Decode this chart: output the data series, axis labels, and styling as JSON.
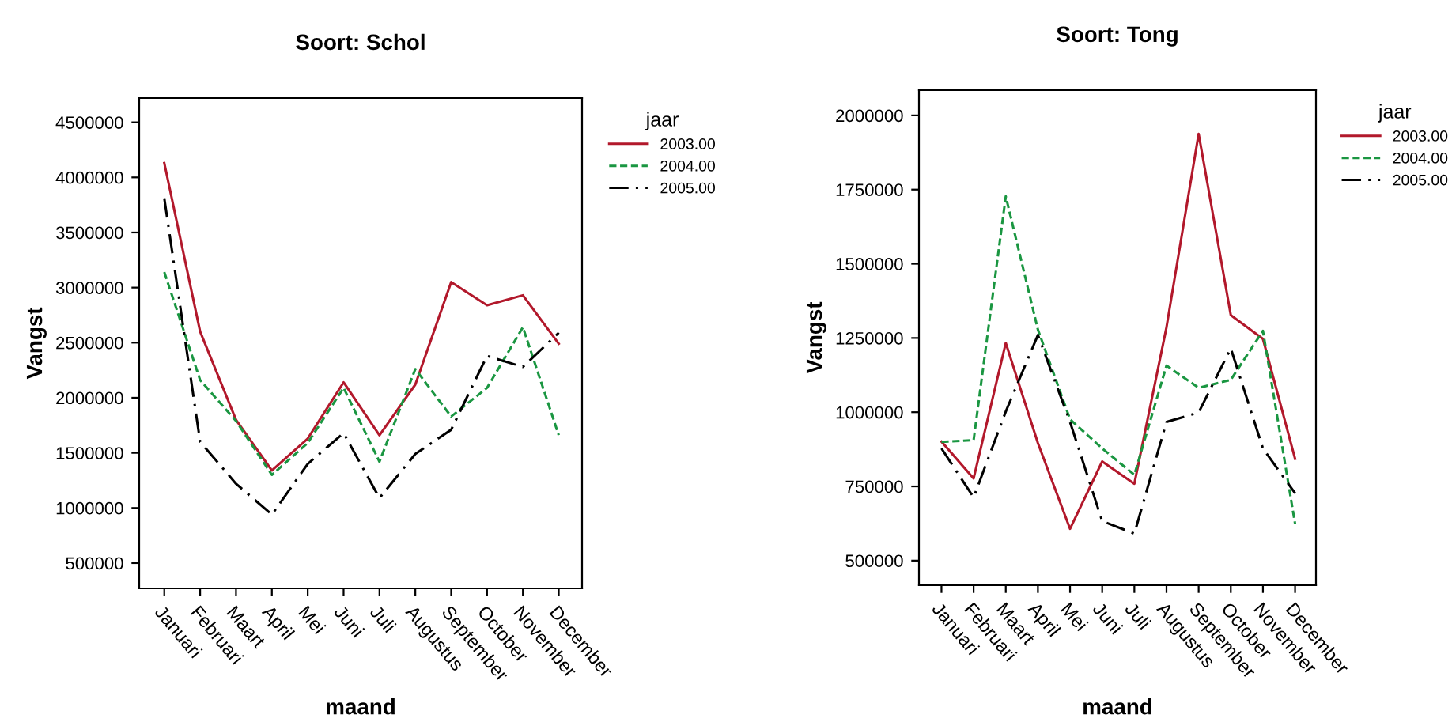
{
  "chart_data": [
    {
      "type": "line",
      "title": "Soort: Schol",
      "xlabel": "maand",
      "ylabel": "Vangst",
      "legend_title": "jaar",
      "legend": "right",
      "grid": false,
      "categories": [
        "Januari",
        "Februari",
        "Maart",
        "April",
        "Mei",
        "Juni",
        "Juli",
        "Augustus",
        "September",
        "October",
        "November",
        "December"
      ],
      "ylim": [
        270000,
        4720000
      ],
      "yticks": [
        500000,
        1000000,
        1500000,
        2000000,
        2500000,
        3000000,
        3500000,
        4000000,
        4500000
      ],
      "series": [
        {
          "name": "2003.00",
          "color": "#b2182b",
          "line_style": "solid",
          "values": [
            4130000,
            2600000,
            1800000,
            1340000,
            1630000,
            2140000,
            1660000,
            2120000,
            3050000,
            2840000,
            2930000,
            2490000
          ]
        },
        {
          "name": "2004.00",
          "color": "#1a9641",
          "line_style": "dashed",
          "values": [
            3140000,
            2160000,
            1790000,
            1300000,
            1590000,
            2090000,
            1420000,
            2260000,
            1830000,
            2090000,
            2640000,
            1660000
          ]
        },
        {
          "name": "2005.00",
          "color": "#000000",
          "line_style": "dashdot",
          "values": [
            3810000,
            1600000,
            1220000,
            940000,
            1400000,
            1680000,
            1090000,
            1490000,
            1710000,
            2380000,
            2280000,
            2590000
          ]
        }
      ]
    },
    {
      "type": "line",
      "title": "Soort: Tong",
      "xlabel": "maand",
      "ylabel": "Vangst",
      "legend_title": "jaar",
      "legend": "right",
      "grid": false,
      "categories": [
        "Januari",
        "Februari",
        "Maart",
        "April",
        "Mei",
        "Juni",
        "Juli",
        "Augustus",
        "September",
        "October",
        "November",
        "December"
      ],
      "ylim": [
        417000,
        2085000
      ],
      "yticks": [
        500000,
        750000,
        1000000,
        1250000,
        1500000,
        1750000,
        2000000
      ],
      "series": [
        {
          "name": "2003.00",
          "color": "#b2182b",
          "line_style": "solid",
          "values": [
            901000,
            777000,
            1233000,
            896000,
            607000,
            834000,
            759000,
            1286000,
            1938000,
            1327000,
            1247000,
            843000
          ]
        },
        {
          "name": "2004.00",
          "color": "#1a9641",
          "line_style": "dashed",
          "values": [
            900000,
            906000,
            1727000,
            1278000,
            976000,
            878000,
            789000,
            1157000,
            1082000,
            1109000,
            1274000,
            624000
          ]
        },
        {
          "name": "2005.00",
          "color": "#000000",
          "line_style": "dashdot",
          "values": [
            878000,
            713000,
            1002000,
            1260000,
            967000,
            633000,
            591000,
            967000,
            999000,
            1215000,
            878000,
            727000
          ]
        }
      ]
    }
  ]
}
